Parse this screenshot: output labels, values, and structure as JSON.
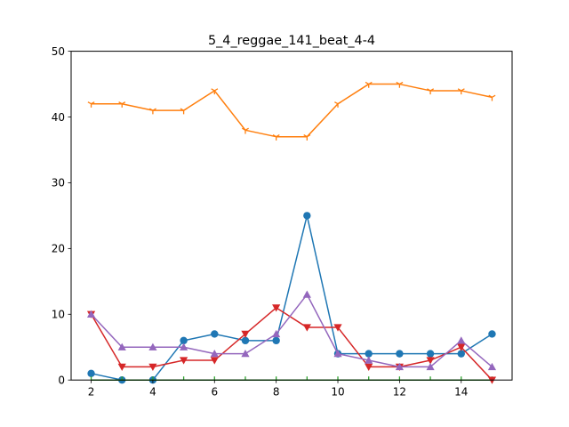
{
  "chart_data": {
    "type": "line",
    "title": "5_4_reggae_141_beat_4-4",
    "xlabel": "",
    "ylabel": "",
    "xlim": [
      1.35,
      15.65
    ],
    "ylim": [
      0,
      50
    ],
    "x_ticks": [
      2,
      4,
      6,
      8,
      10,
      12,
      14
    ],
    "y_ticks": [
      0,
      10,
      20,
      30,
      40,
      50
    ],
    "grid": false,
    "x": [
      2,
      3,
      4,
      5,
      6,
      7,
      8,
      9,
      10,
      11,
      12,
      13,
      14,
      15
    ],
    "series": [
      {
        "color": "#1f77b4",
        "marker": "circle",
        "values": [
          1,
          0,
          0,
          6,
          7,
          6,
          6,
          25,
          4,
          4,
          4,
          4,
          4,
          7
        ]
      },
      {
        "color": "#ff7f0e",
        "marker": "tri_down",
        "values": [
          42,
          42,
          41,
          41,
          44,
          38,
          37,
          37,
          42,
          45,
          45,
          44,
          44,
          43
        ]
      },
      {
        "color": "#2ca02c",
        "marker": "tick",
        "values": [
          0,
          0,
          0,
          0,
          0,
          0,
          0,
          0,
          0,
          0,
          0,
          0,
          0,
          0
        ]
      },
      {
        "color": "#d62728",
        "marker": "triangle_down",
        "values": [
          10,
          2,
          2,
          3,
          3,
          7,
          11,
          8,
          8,
          2,
          2,
          3,
          5,
          0
        ]
      },
      {
        "color": "#9467bd",
        "marker": "triangle_up",
        "values": [
          10,
          5,
          5,
          5,
          4,
          4,
          7,
          13,
          4,
          3,
          2,
          2,
          6,
          2
        ]
      }
    ]
  }
}
